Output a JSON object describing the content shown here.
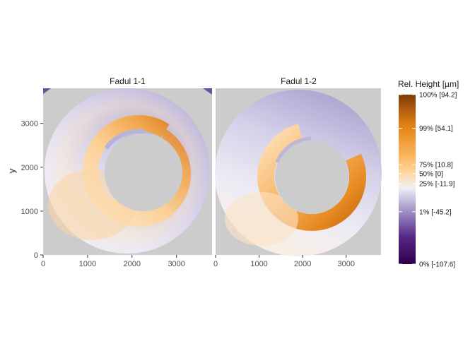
{
  "chart_data": {
    "type": "heatmap",
    "panels": [
      {
        "title": "Fadul 1-1",
        "specimen": "Fadul 1-1"
      },
      {
        "title": "Fadul 1-2",
        "specimen": "Fadul 1-2"
      }
    ],
    "xlabel": "",
    "ylabel": "y",
    "xlim": [
      0,
      3800
    ],
    "ylim": [
      0,
      3800
    ],
    "x_ticks": [
      "0",
      "1000",
      "2000",
      "3000"
    ],
    "x_tick_values": [
      0,
      1000,
      2000,
      3000
    ],
    "y_ticks": [
      "0",
      "1000",
      "2000",
      "3000"
    ],
    "y_tick_values": [
      0,
      1000,
      2000,
      3000
    ],
    "ring": {
      "outer_radius": 1800,
      "inner_radius": 950,
      "center": [
        1900,
        1900
      ]
    },
    "na_color": "#cccccc",
    "legend": {
      "title": "Rel. Height [µm]",
      "position": "right",
      "value_range": [
        -107.6,
        94.2
      ],
      "entries": [
        {
          "label": "100% [94.2]",
          "quantile": 1.0,
          "value": 94.2
        },
        {
          "label": "99% [54.1]",
          "quantile": 0.99,
          "value": 54.1
        },
        {
          "label": "75% [10.8]",
          "quantile": 0.75,
          "value": 10.8
        },
        {
          "label": "50% [0]",
          "quantile": 0.5,
          "value": 0
        },
        {
          "label": "25% [-11.9]",
          "quantile": 0.25,
          "value": -11.9
        },
        {
          "label": "1% [-45.2]",
          "quantile": 0.01,
          "value": -45.2
        },
        {
          "label": "0% [-107.6]",
          "quantile": 0.0,
          "value": -107.6
        }
      ],
      "colors": {
        "max": "#7f3b08",
        "high": "#e08214",
        "mid_high": "#fdb863",
        "mid": "#f7f7f7",
        "mid_low": "#b2abd2",
        "low": "#542788",
        "min": "#2d004b"
      }
    }
  }
}
